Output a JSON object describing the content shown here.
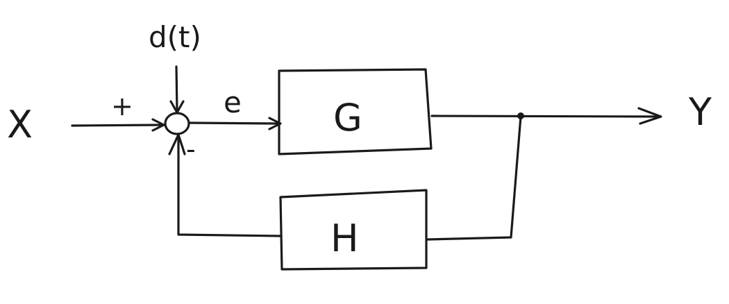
{
  "diagram": {
    "input_label": "X",
    "output_label": "Y",
    "disturbance_label": "d(t)",
    "error_label": "e",
    "plus_sign": "+",
    "minus_sign": "-",
    "forward_block_label": "G",
    "feedback_block_label": "H"
  }
}
